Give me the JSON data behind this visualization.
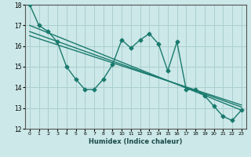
{
  "title": "",
  "xlabel": "Humidex (Indice chaleur)",
  "ylabel": "",
  "xlim": [
    -0.5,
    23.5
  ],
  "ylim": [
    12,
    18
  ],
  "yticks": [
    12,
    13,
    14,
    15,
    16,
    17,
    18
  ],
  "xticks": [
    0,
    1,
    2,
    3,
    4,
    5,
    6,
    7,
    8,
    9,
    10,
    11,
    12,
    13,
    14,
    15,
    16,
    17,
    18,
    19,
    20,
    21,
    22,
    23
  ],
  "bg_color": "#cce8e8",
  "grid_color": "#aacfcf",
  "line_color": "#1a7a6e",
  "line1_x": [
    0,
    1,
    2,
    3,
    4,
    5,
    6,
    7,
    8,
    9,
    10,
    11,
    12,
    13,
    14,
    15,
    16,
    17,
    18,
    19,
    20,
    21,
    22,
    23
  ],
  "line1_y": [
    18.0,
    17.0,
    16.7,
    16.2,
    15.0,
    14.4,
    13.9,
    13.9,
    14.4,
    15.1,
    16.3,
    15.9,
    16.3,
    16.6,
    16.1,
    14.8,
    16.2,
    13.9,
    13.9,
    13.6,
    13.1,
    12.6,
    12.4,
    12.9
  ],
  "line2_x": [
    0,
    23
  ],
  "line2_y": [
    17.0,
    12.9
  ],
  "line3_x": [
    0,
    23
  ],
  "line3_y": [
    16.7,
    13.05
  ],
  "line4_x": [
    0,
    23
  ],
  "line4_y": [
    16.5,
    13.15
  ],
  "marker": "D",
  "markersize": 2.5,
  "linewidth": 1.0
}
